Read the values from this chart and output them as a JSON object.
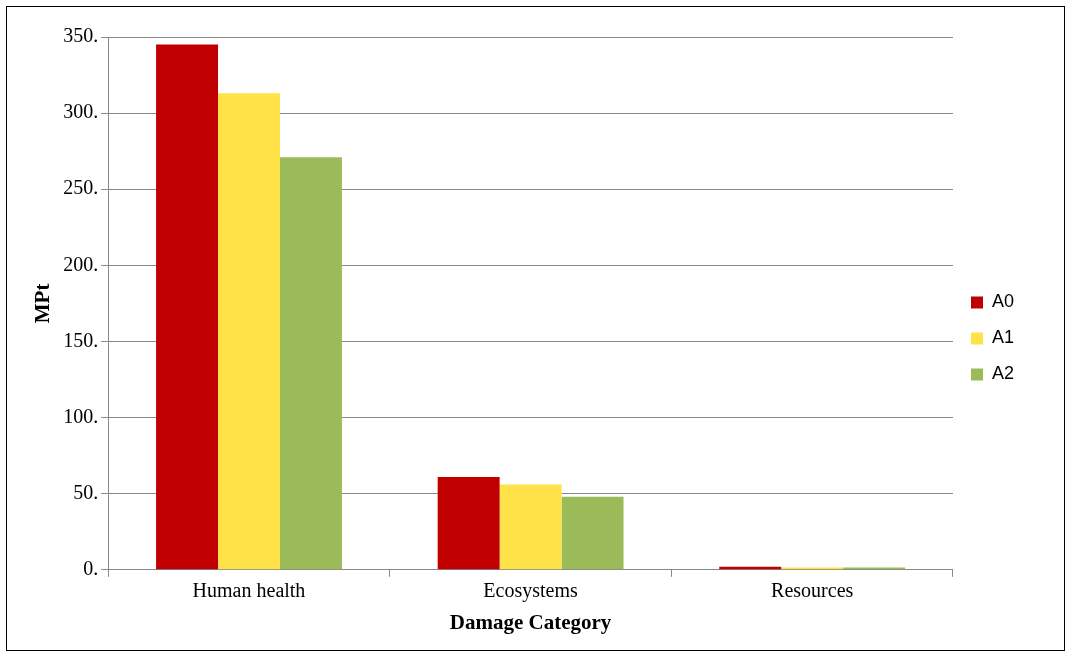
{
  "chart_data": {
    "type": "bar",
    "xlabel": "Damage Category",
    "ylabel": "MPt",
    "categories": [
      "Human health",
      "Ecosystems",
      "Resources"
    ],
    "series": [
      {
        "name": "A0",
        "color": "#c00000",
        "values": [
          345,
          61,
          2
        ]
      },
      {
        "name": "A1",
        "color": "#ffe148",
        "values": [
          313,
          56,
          1.5
        ]
      },
      {
        "name": "A2",
        "color": "#9bbb59",
        "values": [
          271,
          48,
          1.5
        ]
      }
    ],
    "ylim": [
      0,
      350
    ],
    "yticks": [
      {
        "value": 0,
        "label": "0."
      },
      {
        "value": 50,
        "label": "50."
      },
      {
        "value": 100,
        "label": "100."
      },
      {
        "value": 150,
        "label": "150."
      },
      {
        "value": 200,
        "label": "200."
      },
      {
        "value": 250,
        "label": "250."
      },
      {
        "value": 300,
        "label": "300."
      },
      {
        "value": 350,
        "label": "350."
      }
    ],
    "grid": "y",
    "legend": "right"
  }
}
